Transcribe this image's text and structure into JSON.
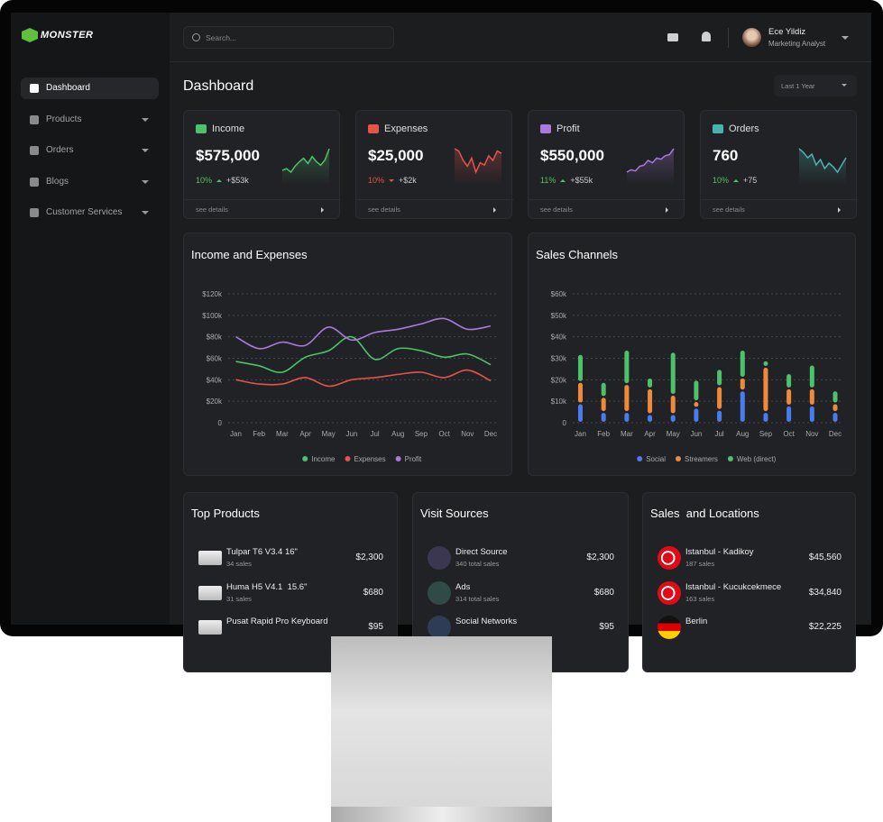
{
  "sidebar": {
    "logo": "MONSTER",
    "nav": [
      "Dashboard",
      "Products",
      "Orders",
      "Blogs",
      "Customer Services"
    ]
  },
  "header": {
    "search_placeholder": "Search...",
    "user_name": "Ece Yildiz",
    "user_role": "Marketing Analyst"
  },
  "page_title": "Dashboard",
  "period": "Last 1 Year",
  "kpis": [
    {
      "label": "Income",
      "value": "$575,000",
      "change": "10%",
      "delta": "+$53k",
      "trend": "up",
      "color": "#4cc36b",
      "link": "see details",
      "sparkline": [
        20,
        22,
        18,
        25,
        30,
        34,
        28,
        36,
        30,
        26,
        32,
        45
      ]
    },
    {
      "label": "Expenses",
      "value": "$25,000",
      "change": "10%",
      "delta": "+$2k",
      "trend": "down",
      "color": "#e5534b",
      "link": "see details",
      "sparkline": [
        40,
        38,
        30,
        25,
        32,
        20,
        28,
        26,
        34,
        30,
        38,
        36
      ]
    },
    {
      "label": "Profit",
      "value": "$550,000",
      "change": "11%",
      "delta": "+$55k",
      "trend": "up",
      "color": "#a77bdb",
      "link": "see details",
      "sparkline": [
        10,
        14,
        12,
        20,
        22,
        30,
        26,
        34,
        32,
        38,
        40,
        50
      ]
    },
    {
      "label": "Orders",
      "value": "760",
      "change": "10%",
      "delta": "+75",
      "trend": "up",
      "color": "#4ab3b0",
      "link": "see details",
      "sparkline": [
        40,
        36,
        30,
        34,
        22,
        28,
        18,
        24,
        20,
        14,
        22,
        30
      ]
    }
  ],
  "chart_data": [
    {
      "type": "line",
      "title": "Income and Expenses",
      "categories": [
        "Jan",
        "Feb",
        "Mar",
        "Apr",
        "May",
        "Jun",
        "Jul",
        "Aug",
        "Sep",
        "Oct",
        "Nov",
        "Dec"
      ],
      "series": [
        {
          "name": "Income",
          "color": "#4cc36b",
          "values": [
            57000,
            53000,
            47000,
            61000,
            67000,
            80000,
            59000,
            69000,
            67000,
            61000,
            64000,
            54000
          ]
        },
        {
          "name": "Expenses",
          "color": "#e5534b",
          "values": [
            40000,
            36000,
            36000,
            42000,
            34000,
            40000,
            42000,
            45000,
            47000,
            42000,
            49000,
            39000
          ]
        },
        {
          "name": "Profit",
          "color": "#a77bdb",
          "values": [
            80000,
            69000,
            75000,
            72000,
            89000,
            77000,
            84000,
            87000,
            92000,
            97000,
            87000,
            90000
          ]
        }
      ],
      "ylim": [
        0,
        120000
      ],
      "yticks": [
        0,
        {
          "value": 20000,
          "label": "$20k"
        },
        {
          "value": 40000,
          "label": "$40k"
        },
        {
          "value": 60000,
          "label": "$60k"
        },
        {
          "value": 80000,
          "label": "$80k"
        },
        {
          "value": 100000,
          "label": "$100k"
        },
        {
          "value": 120000,
          "label": "$120k"
        }
      ],
      "grid": true,
      "legend": "bottom"
    },
    {
      "type": "bar",
      "stacked": true,
      "title": "Sales Channels",
      "categories": [
        "Jan",
        "Feb",
        "Mar",
        "Apr",
        "May",
        "Jun",
        "Jul",
        "Aug",
        "Sep",
        "Oct",
        "Nov",
        "Dec"
      ],
      "series": [
        {
          "name": "Social",
          "color": "#4a7cf0",
          "values": [
            9000,
            5000,
            5000,
            4000,
            4000,
            7000,
            6000,
            15000,
            5000,
            8000,
            8000,
            5000
          ]
        },
        {
          "name": "Streamers",
          "color": "#f08a3a",
          "values": [
            10000,
            7000,
            13000,
            12000,
            9000,
            3000,
            11000,
            6000,
            21000,
            8000,
            8000,
            4000
          ]
        },
        {
          "name": "Web (direct)",
          "color": "#4cc36b",
          "values": [
            13000,
            7000,
            16000,
            5000,
            20000,
            10000,
            8000,
            13000,
            3000,
            7000,
            11000,
            6000
          ]
        }
      ],
      "ylim": [
        0,
        60000
      ],
      "yticks": [
        0,
        {
          "value": 10000,
          "label": "$10k"
        },
        {
          "value": 20000,
          "label": "$20k"
        },
        {
          "value": 30000,
          "label": "$30k"
        },
        {
          "value": 40000,
          "label": "$40k"
        },
        {
          "value": 50000,
          "label": "$50k"
        },
        {
          "value": 60000,
          "label": "$60k"
        }
      ],
      "grid": true,
      "legend": "bottom"
    }
  ],
  "lists": [
    {
      "title": "Top Products",
      "kind": "product",
      "items": [
        {
          "name": "Tulpar T6 V3.4 16\"",
          "sub": "34 sales",
          "value": "$2,300"
        },
        {
          "name": "Huma H5 V4.1  15.6\"",
          "sub": "31 sales",
          "value": "$680"
        },
        {
          "name": "Pusat Rapid Pro Keyboard",
          "value": "$95"
        }
      ]
    },
    {
      "title": "Visit Sources",
      "kind": "source",
      "items": [
        {
          "name": "Direct Source",
          "sub": "340 total sales",
          "value": "$2,300"
        },
        {
          "name": "Ads",
          "sub": "314 total sales",
          "value": "$680"
        },
        {
          "name": "Social Networks",
          "value": "$95"
        }
      ]
    },
    {
      "title": "Sales  and Locations",
      "kind": "location",
      "items": [
        {
          "name": "Istanbul - Kadikoy",
          "sub": "187 sales",
          "value": "$45,560"
        },
        {
          "name": "Istanbul - Kucukcekmece",
          "sub": "163 sales",
          "value": "$34,840"
        },
        {
          "name": "Berlin",
          "value": "$22,225"
        }
      ]
    }
  ]
}
